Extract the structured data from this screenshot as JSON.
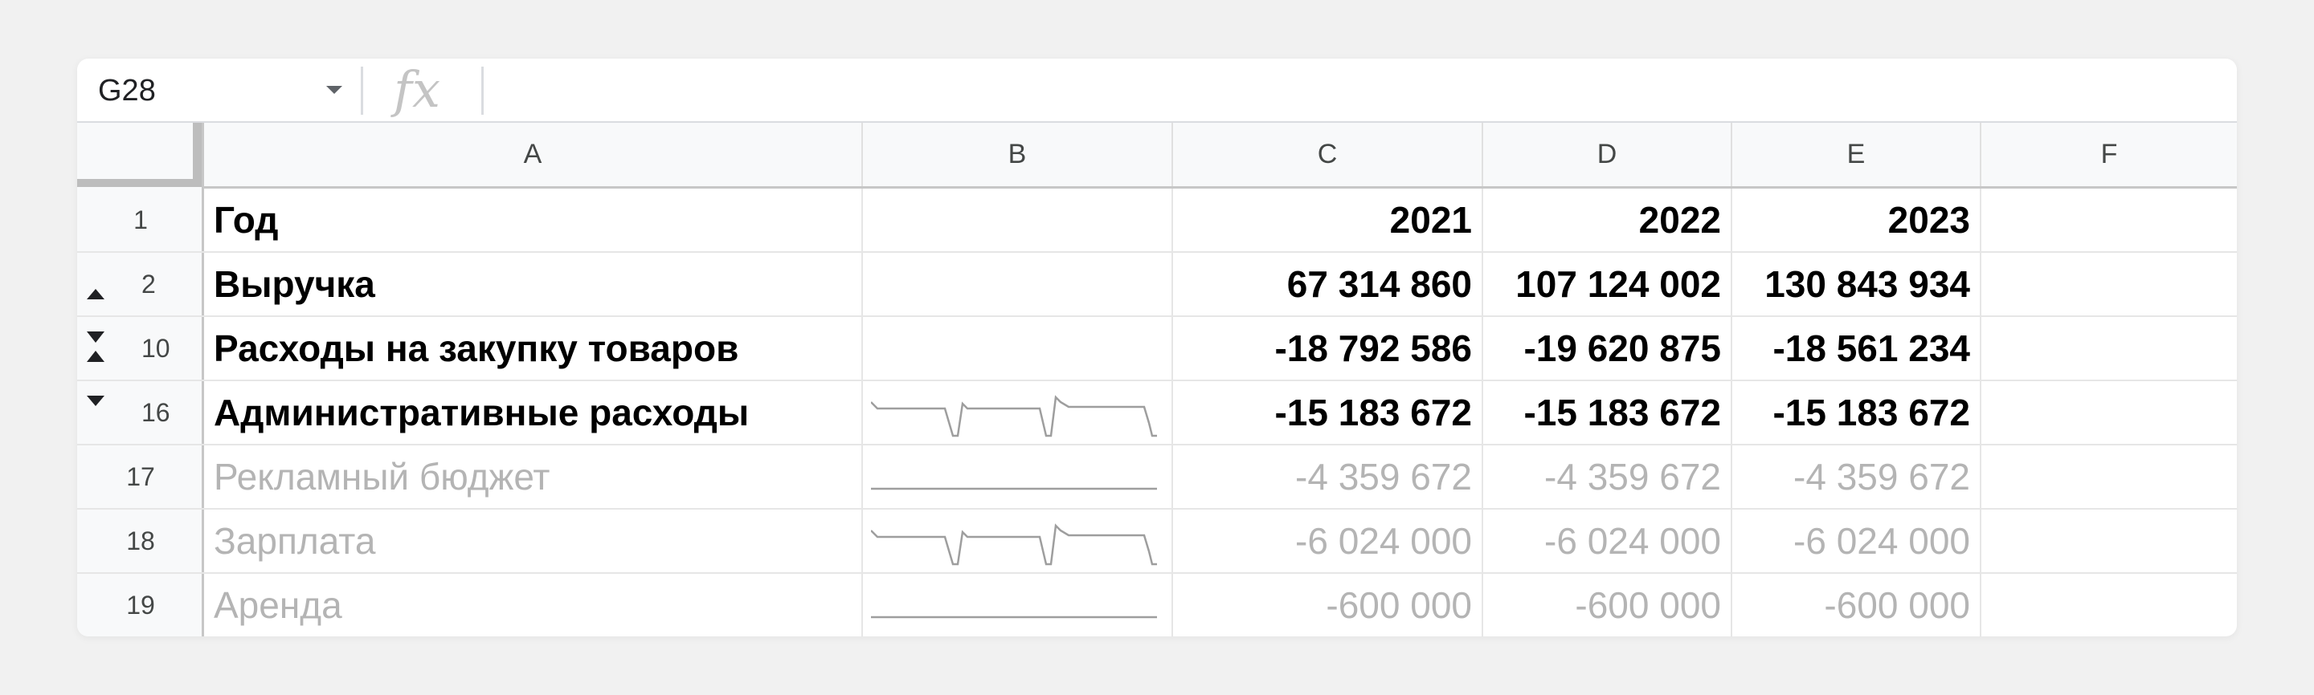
{
  "formula_bar": {
    "cell_ref": "G28",
    "fx_symbol": "fx",
    "formula": ""
  },
  "columns": [
    "A",
    "B",
    "C",
    "D",
    "E",
    "F"
  ],
  "rows": [
    {
      "number": "1",
      "group_control": "none",
      "style": "bold",
      "label": "Год",
      "sparkline": "none",
      "values": [
        "2021",
        "2022",
        "2023"
      ]
    },
    {
      "number": "2",
      "group_control": "expand-up",
      "style": "bold",
      "label": "Выручка",
      "sparkline": "none",
      "values": [
        "67 314 860",
        "107 124 002",
        "130 843 934"
      ]
    },
    {
      "number": "10",
      "group_control": "collapsed",
      "style": "bold",
      "label": "Расходы на закупку товаров",
      "sparkline": "none",
      "values": [
        "-18 792 586",
        "-19 620 875",
        "-18 561 234"
      ]
    },
    {
      "number": "16",
      "group_control": "expand-down",
      "style": "bold",
      "label": "Административные расходы",
      "sparkline": "pulse",
      "values": [
        "-15 183 672",
        "-15 183 672",
        "-15 183 672"
      ]
    },
    {
      "number": "17",
      "group_control": "none",
      "style": "grey",
      "label": "Рекламный бюджет",
      "sparkline": "flat",
      "values": [
        "-4 359 672",
        "-4 359 672",
        "-4 359 672"
      ]
    },
    {
      "number": "18",
      "group_control": "none",
      "style": "grey",
      "label": "Зарплата",
      "sparkline": "pulse",
      "values": [
        "-6 024 000",
        "-6 024 000",
        "-6 024 000"
      ]
    },
    {
      "number": "19",
      "group_control": "none",
      "style": "grey",
      "label": "Аренда",
      "sparkline": "flat",
      "values": [
        "-600 000",
        "-600 000",
        "-600 000"
      ]
    }
  ],
  "colors": {
    "sparkline": "#9e9e9e",
    "grey_text": "#b4b4b4",
    "header_bg": "#f8f9fa"
  }
}
